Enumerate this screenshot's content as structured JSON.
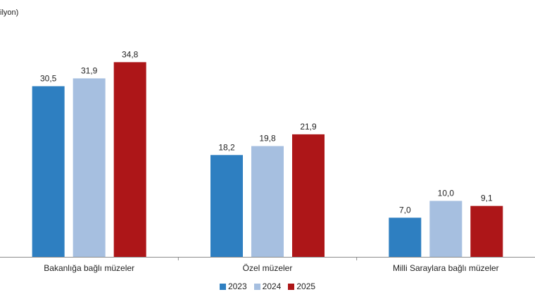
{
  "unit_label": "ilyon)",
  "chart_data": {
    "type": "bar",
    "title": "",
    "xlabel": "",
    "ylabel": "",
    "categories": [
      "Bakanlığa bağlı müzeler",
      "Özel müzeler",
      "Milli Saraylara bağlı müzeler"
    ],
    "series": [
      {
        "name": "2023",
        "color": "#2e7fc1",
        "values": [
          30.5,
          18.2,
          7.0
        ],
        "labels": [
          "30,5",
          "18,2",
          "7,0"
        ]
      },
      {
        "name": "2024",
        "color": "#a6bfe0",
        "values": [
          31.9,
          19.8,
          10.0
        ],
        "labels": [
          "31,9",
          "19,8",
          "10,0"
        ]
      },
      {
        "name": "2025",
        "color": "#ad1618",
        "values": [
          34.8,
          21.9,
          9.1
        ],
        "labels": [
          "34,8",
          "21,9",
          "9,1"
        ]
      }
    ],
    "ylim": [
      0,
      40
    ],
    "grid": false,
    "legend": "bottom-center"
  }
}
